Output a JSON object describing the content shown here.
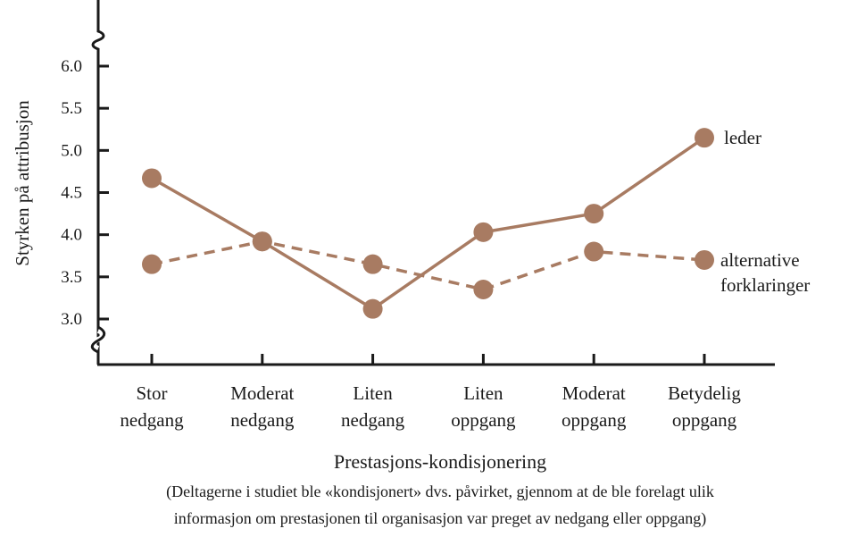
{
  "chart_data": {
    "type": "line",
    "categories": [
      [
        "Stor",
        "nedgang"
      ],
      [
        "Moderat",
        "nedgang"
      ],
      [
        "Liten",
        "nedgang"
      ],
      [
        "Liten",
        "oppgang"
      ],
      [
        "Moderat",
        "oppgang"
      ],
      [
        "Betydelig",
        "oppgang"
      ]
    ],
    "series": [
      {
        "name": "leder",
        "label_lines": [
          "leder"
        ],
        "style": "solid",
        "values": [
          4.67,
          3.92,
          3.12,
          4.03,
          4.25,
          5.15
        ]
      },
      {
        "name": "alternative forklaringer",
        "label_lines": [
          "alternative",
          "forklaringer"
        ],
        "style": "dashed",
        "values": [
          3.65,
          3.92,
          3.65,
          3.35,
          3.8,
          3.7
        ]
      }
    ],
    "yticks": [
      "3.0",
      "3.5",
      "4.0",
      "4.5",
      "5.0",
      "5.5",
      "6.0"
    ],
    "ylim": [
      3.0,
      6.0
    ],
    "ylabel": "Styrken på attribusjon",
    "xlabel": "Prestasjons-kondisjonering",
    "caption_lines": [
      "(Deltagerne i studiet ble «kondisjonert» dvs. påvirket, gjennom at de ble forelagt ulik",
      "informasjon om prestasjonen til organisasjon var preget av nedgang eller oppgang)"
    ],
    "axis_break": true,
    "grid": false,
    "color": "#a87b62"
  }
}
